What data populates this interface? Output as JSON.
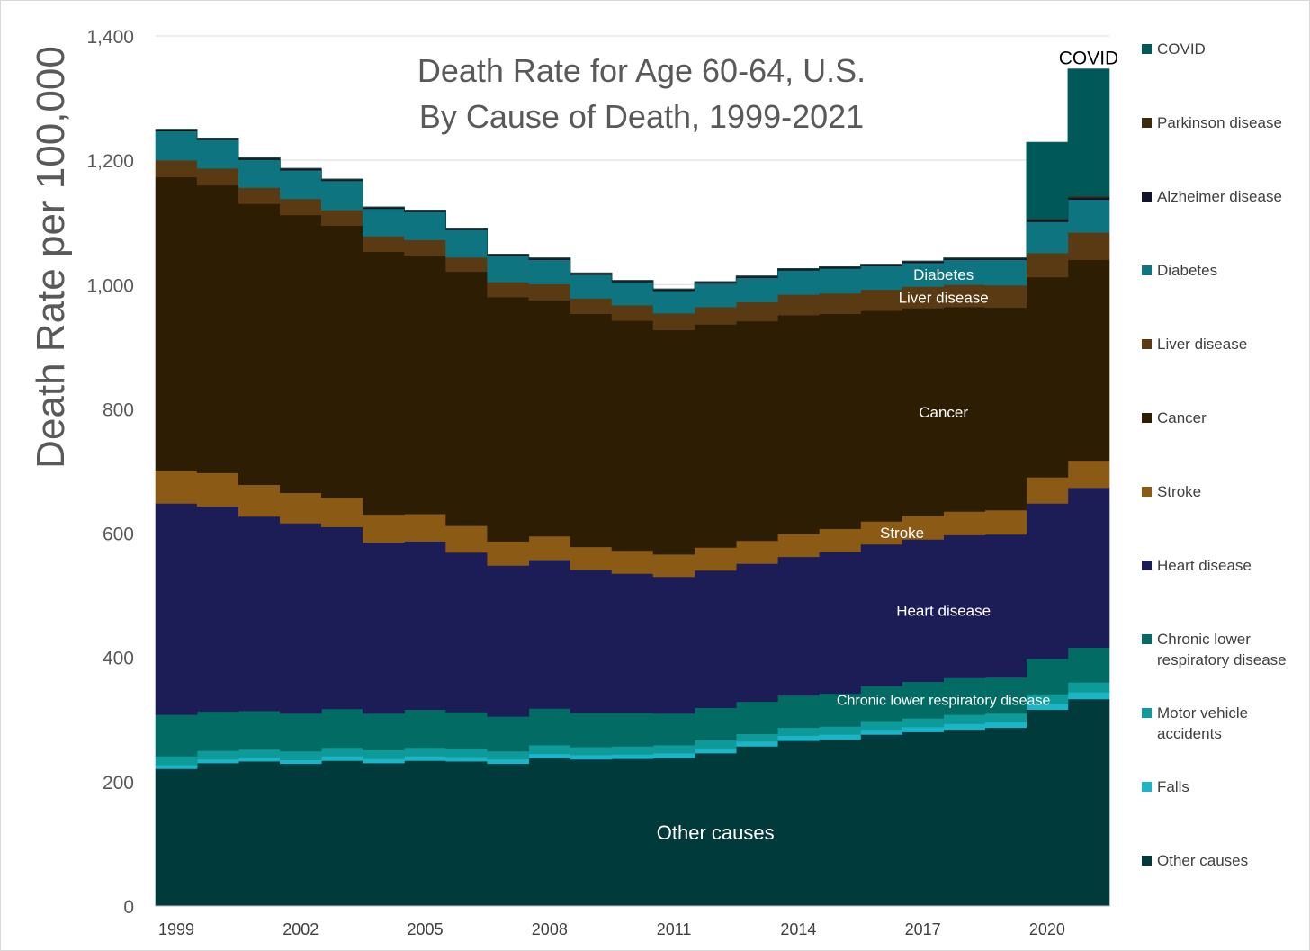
{
  "chart_data": {
    "type": "area",
    "stacked": true,
    "step": true,
    "title": "Death Rate for Age 60-64, U.S.",
    "subtitle": "By Cause of Death, 1999-2021",
    "ylabel": "Death Rate per 100,000",
    "xlabel": "",
    "ylim": [
      0,
      1400
    ],
    "yticks": [
      0,
      200,
      400,
      600,
      800,
      1000,
      1200,
      1400
    ],
    "ytick_labels": [
      "0",
      "200",
      "400",
      "600",
      "800",
      "1,000",
      "1,200",
      "1,400"
    ],
    "x": [
      1999,
      2000,
      2001,
      2002,
      2003,
      2004,
      2005,
      2006,
      2007,
      2008,
      2009,
      2010,
      2011,
      2012,
      2013,
      2014,
      2015,
      2016,
      2017,
      2018,
      2019,
      2020,
      2021
    ],
    "xtick_labels": [
      "1999",
      "2002",
      "2005",
      "2008",
      "2011",
      "2014",
      "2017",
      "2020"
    ],
    "grid": true,
    "legend_position": "right",
    "series": [
      {
        "name": "Other causes",
        "color": "#003a3a",
        "label": "Other causes",
        "values": [
          221,
          230,
          233,
          229,
          234,
          230,
          234,
          233,
          229,
          238,
          236,
          237,
          238,
          246,
          257,
          266,
          268,
          276,
          280,
          284,
          287,
          316,
          333
        ]
      },
      {
        "name": "Falls",
        "color": "#1bb5c8",
        "label": "",
        "values": [
          6,
          6,
          6,
          6,
          7,
          7,
          7,
          7,
          7,
          7,
          7,
          7,
          8,
          8,
          8,
          8,
          8,
          8,
          8,
          9,
          9,
          10,
          11
        ]
      },
      {
        "name": "Motor vehicle accidents",
        "color": "#0f9a9a",
        "label": "",
        "values": [
          14,
          14,
          13,
          14,
          14,
          14,
          14,
          14,
          13,
          14,
          13,
          13,
          13,
          13,
          12,
          13,
          13,
          14,
          14,
          15,
          14,
          15,
          16
        ]
      },
      {
        "name": "Chronic lower respiratory disease",
        "color": "#026b63",
        "label": "Chronic lower respiratory disease",
        "values": [
          67,
          63,
          62,
          61,
          62,
          59,
          61,
          58,
          56,
          59,
          55,
          54,
          51,
          52,
          52,
          52,
          53,
          56,
          59,
          59,
          58,
          57,
          56
        ]
      },
      {
        "name": "Heart disease",
        "color": "#1c1c57",
        "label": "Heart disease",
        "values": [
          340,
          330,
          313,
          306,
          293,
          275,
          271,
          257,
          243,
          239,
          230,
          224,
          220,
          221,
          222,
          223,
          228,
          228,
          229,
          230,
          230,
          250,
          257
        ]
      },
      {
        "name": "Stroke",
        "color": "#8b5a14",
        "label": "Stroke",
        "values": [
          53,
          54,
          51,
          49,
          47,
          45,
          44,
          43,
          39,
          38,
          37,
          37,
          36,
          37,
          37,
          37,
          37,
          37,
          38,
          38,
          39,
          42,
          44
        ]
      },
      {
        "name": "Cancer",
        "color": "#2d1e03",
        "label": "Cancer",
        "values": [
          472,
          463,
          452,
          447,
          438,
          423,
          416,
          409,
          393,
          380,
          375,
          370,
          361,
          359,
          353,
          352,
          346,
          339,
          334,
          329,
          326,
          322,
          323
        ]
      },
      {
        "name": "Liver disease",
        "color": "#5a3a12",
        "label": "Liver disease",
        "values": [
          27,
          27,
          26,
          26,
          25,
          25,
          25,
          23,
          24,
          26,
          25,
          25,
          27,
          28,
          31,
          33,
          33,
          34,
          35,
          36,
          36,
          39,
          44
        ]
      },
      {
        "name": "Diabetes",
        "color": "#0e7480",
        "label": "Diabetes",
        "values": [
          47,
          46,
          45,
          46,
          47,
          44,
          45,
          44,
          42,
          39,
          38,
          37,
          36,
          38,
          39,
          39,
          40,
          38,
          38,
          40,
          41,
          50,
          53
        ]
      },
      {
        "name": "Alzheimer disease",
        "color": "#13132b",
        "label": "",
        "values": [
          2,
          2,
          2,
          2,
          2,
          2,
          2,
          2,
          2,
          2,
          2,
          2,
          2,
          2,
          2,
          2,
          2,
          2,
          2,
          2,
          2,
          3,
          3
        ]
      },
      {
        "name": "Parkinson disease",
        "color": "#3c2a0c",
        "label": "",
        "values": [
          1,
          1,
          1,
          1,
          1,
          1,
          1,
          1,
          1,
          1,
          1,
          1,
          1,
          1,
          1,
          1,
          1,
          1,
          1,
          1,
          1,
          2,
          2
        ]
      },
      {
        "name": "COVID",
        "color": "#005858",
        "label": "COVID",
        "values": [
          0,
          0,
          0,
          0,
          0,
          0,
          0,
          0,
          0,
          0,
          0,
          0,
          0,
          0,
          0,
          0,
          0,
          0,
          0,
          0,
          0,
          123,
          205
        ]
      }
    ],
    "legend": [
      {
        "name": "COVID",
        "color": "#005858"
      },
      {
        "name": "Parkinson disease",
        "color": "#3c2a0c"
      },
      {
        "name": "Alzheimer disease",
        "color": "#13132b"
      },
      {
        "name": "Diabetes",
        "color": "#0e7480"
      },
      {
        "name": "Liver disease",
        "color": "#5a3a12"
      },
      {
        "name": "Cancer",
        "color": "#2d1e03"
      },
      {
        "name": "Stroke",
        "color": "#8b5a14"
      },
      {
        "name": "Heart disease",
        "color": "#1c1c57"
      },
      {
        "name": "Chronic lower respiratory disease",
        "color": "#026b63",
        "lines": [
          "Chronic lower",
          "respiratory disease"
        ]
      },
      {
        "name": "Motor vehicle accidents",
        "color": "#0f9a9a",
        "lines": [
          "Motor vehicle",
          "accidents"
        ]
      },
      {
        "name": "Falls",
        "color": "#1bb5c8"
      },
      {
        "name": "Other causes",
        "color": "#003a3a"
      }
    ]
  }
}
